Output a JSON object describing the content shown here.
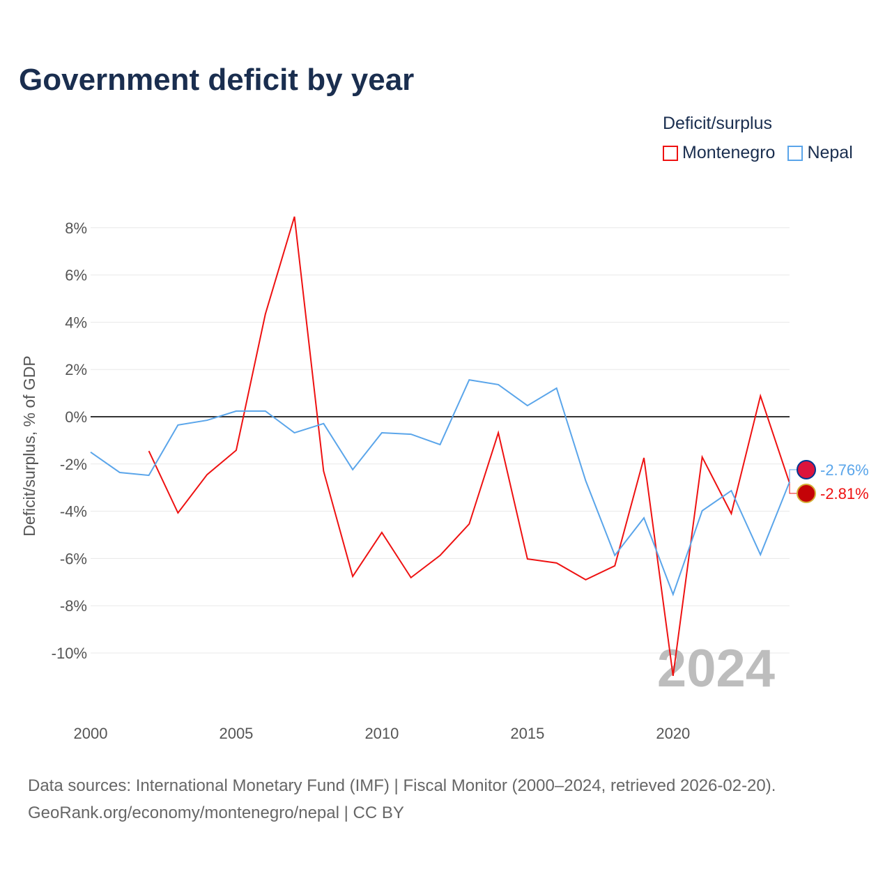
{
  "chart_data": {
    "type": "line",
    "title": "Government deficit by year",
    "ylabel": "Deficit/surplus, % of GDP",
    "xlabel": "",
    "ylim": [
      -12,
      8.5
    ],
    "xlim": [
      2000,
      2024
    ],
    "yticks": [
      8,
      6,
      4,
      2,
      0,
      -2,
      -4,
      -6,
      -8,
      -10
    ],
    "ytick_labels": [
      "8%",
      "6%",
      "4%",
      "2%",
      "0%",
      "-2%",
      "-4%",
      "-6%",
      "-8%",
      "-10%"
    ],
    "xticks": [
      2000,
      2005,
      2010,
      2015,
      2020
    ],
    "xtick_labels": [
      "2000",
      "2005",
      "2010",
      "2015",
      "2020"
    ],
    "legend_title": "Deficit/surplus",
    "legend_position": "top-right",
    "watermark_year": "2024",
    "grid": true,
    "series": [
      {
        "name": "Montenegro",
        "color": "#ee1111",
        "end_label": "-2.81%",
        "x": [
          2002,
          2003,
          2004,
          2005,
          2006,
          2007,
          2008,
          2009,
          2010,
          2011,
          2012,
          2013,
          2014,
          2015,
          2016,
          2017,
          2018,
          2019,
          2020,
          2021,
          2022,
          2023,
          2024
        ],
        "values": [
          -1.45,
          -4.07,
          -2.45,
          -1.42,
          4.34,
          8.47,
          -2.3,
          -6.76,
          -4.9,
          -6.81,
          -5.87,
          -4.54,
          -0.68,
          -6.02,
          -6.19,
          -6.9,
          -6.31,
          -1.74,
          -10.97,
          -1.71,
          -4.1,
          0.88,
          -2.81
        ]
      },
      {
        "name": "Nepal",
        "color": "#5aa5ea",
        "end_label": "-2.76%",
        "x": [
          2000,
          2001,
          2002,
          2003,
          2004,
          2005,
          2006,
          2007,
          2008,
          2009,
          2010,
          2011,
          2012,
          2013,
          2014,
          2015,
          2016,
          2017,
          2018,
          2019,
          2020,
          2021,
          2022,
          2023,
          2024
        ],
        "values": [
          -1.5,
          -2.36,
          -2.48,
          -0.35,
          -0.15,
          0.24,
          0.24,
          -0.68,
          -0.29,
          -2.24,
          -0.68,
          -0.74,
          -1.18,
          1.56,
          1.36,
          0.47,
          1.21,
          -2.71,
          -5.87,
          -4.28,
          -7.52,
          -3.98,
          -3.13,
          -5.84,
          -2.76
        ]
      }
    ]
  },
  "source": {
    "line1": "Data sources: International Monetary Fund (IMF) | Fiscal Monitor (2000–2024, retrieved 2026-02-20).",
    "line2": "GeoRank.org/economy/montenegro/nepal | CC BY"
  }
}
